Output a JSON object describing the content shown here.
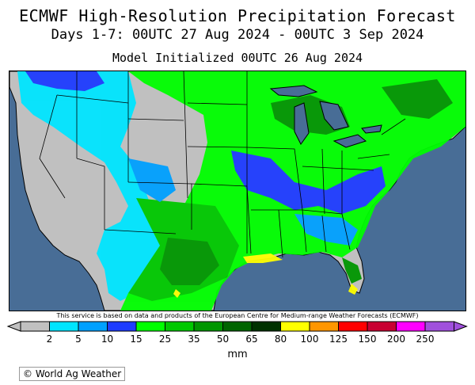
{
  "title": "ECMWF High-Resolution Precipitation Forecast",
  "subtitle": "Days 1-7: 00UTC 27 Aug 2024 - 00UTC 3 Sep 2024",
  "initialized": "Model Initialized 00UTC 26 Aug 2024",
  "credit": "© World Ag Weather",
  "disclaimer": "This service is based on data and products of the European Centre for Medium-range Weather Forecasts (ECMWF)",
  "colors": {
    "ocean": "#486d96",
    "land_dry": "#c0c0c0",
    "border": "#000000"
  },
  "legend": {
    "unit": "mm",
    "bins": [
      {
        "label": "2",
        "color": "#c0c0c0"
      },
      {
        "label": "5",
        "color": "#00e5ff"
      },
      {
        "label": "10",
        "color": "#00a0ff"
      },
      {
        "label": "15",
        "color": "#1e3cff"
      },
      {
        "label": "25",
        "color": "#00ff00"
      },
      {
        "label": "35",
        "color": "#00c800"
      },
      {
        "label": "50",
        "color": "#009600"
      },
      {
        "label": "65",
        "color": "#006400"
      },
      {
        "label": "80",
        "color": "#003200"
      },
      {
        "label": "100",
        "color": "#ffff00"
      },
      {
        "label": "125",
        "color": "#ff9600"
      },
      {
        "label": "150",
        "color": "#ff0000"
      },
      {
        "label": "200",
        "color": "#c80032"
      },
      {
        "label": "250",
        "color": "#ff00ff"
      },
      {
        "label": "",
        "color": "#a050dc"
      }
    ]
  }
}
